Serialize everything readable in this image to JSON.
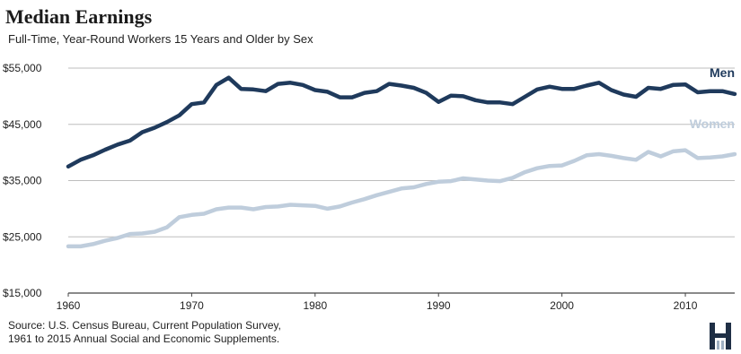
{
  "colors": {
    "men": "#1f3a5c",
    "women": "#bfcddc",
    "grid": "#bdbdbd",
    "axis": "#444444",
    "text": "#222222",
    "logo": "#1f2f45"
  },
  "header": {
    "title": "Median Earnings",
    "subtitle": "Full-Time,  Year-Round  Workers 15 Years and Older by Sex"
  },
  "footer": {
    "source_line1": "Source: U.S. Census Bureau, Current Population Survey,",
    "source_line2": "1961 to 2015 Annual Social and Economic Supplements."
  },
  "logo_icon": "house-h-logo-icon",
  "chart_data": {
    "type": "line",
    "title": "Median Earnings",
    "subtitle": "Full-Time,  Year-Round  Workers 15 Years and Older by Sex",
    "xlabel": "",
    "ylabel": "",
    "xlim": [
      1960,
      2014
    ],
    "ylim": [
      15000,
      55000
    ],
    "grid": true,
    "legend": "inline-right",
    "xticks": [
      1960,
      1970,
      1980,
      1990,
      2000,
      2010
    ],
    "xtick_labels": [
      "1960",
      "1970",
      "1980",
      "1990",
      "2000",
      "2010"
    ],
    "yticks": [
      15000,
      25000,
      35000,
      45000,
      55000
    ],
    "ytick_labels": [
      "$15,000",
      "$25,000",
      "$35,000",
      "$45,000",
      "$55,000"
    ],
    "x": [
      1960,
      1961,
      1962,
      1963,
      1964,
      1965,
      1966,
      1967,
      1968,
      1969,
      1970,
      1971,
      1972,
      1973,
      1974,
      1975,
      1976,
      1977,
      1978,
      1979,
      1980,
      1981,
      1982,
      1983,
      1984,
      1985,
      1986,
      1987,
      1988,
      1989,
      1990,
      1991,
      1992,
      1993,
      1994,
      1995,
      1996,
      1997,
      1998,
      1999,
      2000,
      2001,
      2002,
      2003,
      2004,
      2005,
      2006,
      2007,
      2008,
      2009,
      2010,
      2011,
      2012,
      2013,
      2014
    ],
    "series": [
      {
        "name": "Men",
        "values": [
          37500,
          38700,
          39500,
          40500,
          41400,
          42100,
          43600,
          44400,
          45400,
          46600,
          48600,
          48900,
          52000,
          53300,
          51300,
          51200,
          50900,
          52200,
          52400,
          52000,
          51100,
          50800,
          49800,
          49800,
          50600,
          50900,
          52200,
          51900,
          51500,
          50600,
          49000,
          50100,
          50000,
          49300,
          48900,
          48900,
          48600,
          49900,
          51200,
          51700,
          51300,
          51300,
          51900,
          52400,
          51100,
          50300,
          49900,
          51500,
          51300,
          52000,
          52100,
          50700,
          50900,
          50900,
          50400
        ]
      },
      {
        "name": "Women",
        "values": [
          23300,
          23300,
          23700,
          24300,
          24800,
          25500,
          25600,
          25900,
          26700,
          28500,
          28900,
          29100,
          29900,
          30200,
          30200,
          29900,
          30300,
          30400,
          30700,
          30600,
          30500,
          30000,
          30400,
          31100,
          31700,
          32400,
          33000,
          33600,
          33800,
          34400,
          34800,
          34900,
          35400,
          35200,
          35000,
          34900,
          35500,
          36500,
          37200,
          37600,
          37700,
          38500,
          39500,
          39700,
          39400,
          39000,
          38700,
          40100,
          39300,
          40200,
          40400,
          39000,
          39100,
          39300,
          39700
        ]
      }
    ]
  }
}
